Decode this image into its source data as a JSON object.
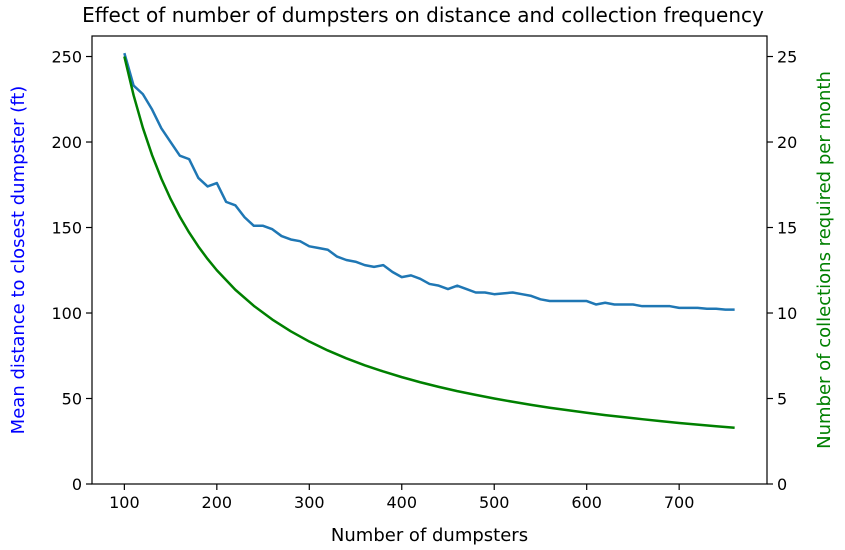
{
  "chart_data": {
    "type": "line",
    "title": "Effect of number of dumpsters on distance and collection frequency",
    "xlabel": "Number of dumpsters",
    "ylabel_left": "Mean distance to closest dumpster (ft)",
    "ylabel_right": "Number of collections required per month",
    "xlim": [
      65,
      795
    ],
    "ylim_left": [
      0,
      262
    ],
    "ylim_right": [
      0,
      26.2
    ],
    "x_ticks": [
      "100",
      "200",
      "300",
      "400",
      "500",
      "600",
      "700"
    ],
    "y_ticks_left": [
      "0",
      "50",
      "100",
      "150",
      "200",
      "250"
    ],
    "y_ticks_right": [
      "0",
      "5",
      "10",
      "15",
      "20",
      "25"
    ],
    "grid": false,
    "colors": {
      "distance": "#1f77b4",
      "collections": "#008000",
      "ylabel_left": "#0000ff",
      "ylabel_right": "#008000"
    },
    "series": [
      {
        "axis": "left",
        "x": [
          100,
          110,
          120,
          130,
          140,
          150,
          160,
          170,
          180,
          190,
          200,
          210,
          220,
          230,
          240,
          250,
          260,
          270,
          280,
          290,
          300,
          310,
          320,
          330,
          340,
          350,
          360,
          370,
          380,
          390,
          400,
          410,
          420,
          430,
          440,
          450,
          460,
          470,
          480,
          490,
          500,
          510,
          520,
          530,
          540,
          550,
          560,
          570,
          580,
          590,
          600,
          610,
          620,
          630,
          640,
          650,
          660,
          670,
          680,
          690,
          700,
          710,
          720,
          730,
          740,
          750,
          760
        ],
        "values": [
          252,
          233,
          228,
          219,
          208,
          200,
          192,
          190,
          179,
          174,
          176,
          165,
          163,
          156,
          151,
          151,
          149,
          145,
          143,
          142,
          139,
          138,
          137,
          133,
          131,
          130,
          128,
          127,
          128,
          124,
          121,
          122,
          120,
          117,
          116,
          114,
          116,
          114,
          112,
          112,
          111,
          111.5,
          112,
          111,
          110,
          108,
          107,
          107,
          107,
          107,
          107,
          105,
          106,
          105,
          105,
          105,
          104,
          104,
          104,
          104,
          103,
          103,
          103,
          102.5,
          102.5,
          102,
          102
        ]
      },
      {
        "axis": "right",
        "x": [
          100,
          110,
          120,
          130,
          140,
          150,
          160,
          170,
          180,
          190,
          200,
          220,
          240,
          260,
          280,
          300,
          320,
          340,
          360,
          380,
          400,
          420,
          440,
          460,
          480,
          500,
          520,
          540,
          560,
          580,
          600,
          620,
          640,
          660,
          680,
          700,
          720,
          740,
          760
        ],
        "values": [
          25,
          22.73,
          20.83,
          19.23,
          17.86,
          16.67,
          15.63,
          14.71,
          13.89,
          13.16,
          12.5,
          11.36,
          10.42,
          9.62,
          8.93,
          8.33,
          7.81,
          7.35,
          6.94,
          6.58,
          6.25,
          5.95,
          5.68,
          5.43,
          5.21,
          5.0,
          4.81,
          4.63,
          4.46,
          4.31,
          4.17,
          4.03,
          3.91,
          3.79,
          3.68,
          3.57,
          3.47,
          3.38,
          3.29
        ]
      }
    ]
  }
}
